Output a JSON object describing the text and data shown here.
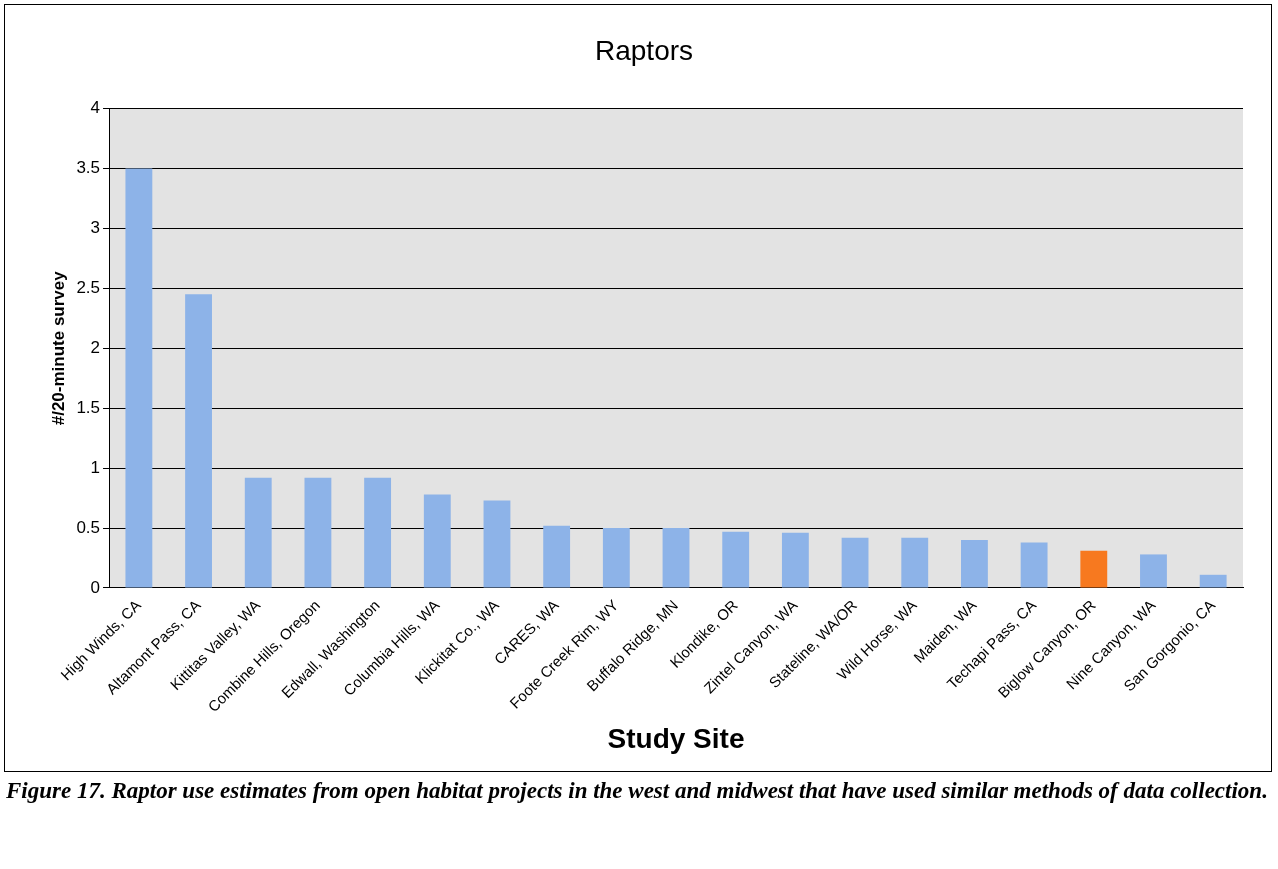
{
  "chart_data": {
    "type": "bar",
    "title": "Raptors",
    "xlabel": "Study Site",
    "ylabel": "#/20-minute survey",
    "categories": [
      "High Winds, CA",
      "Altamont Pass, CA",
      "Kittitas Valley, WA",
      "Combine Hills, Oregon",
      "Edwall, Washington",
      "Columbia Hills, WA",
      "Klickitat Co., WA",
      "CARES, WA",
      "Foote Creek Rim, WY",
      "Buffalo Ridge, MN",
      "Klondike, OR",
      "Zintel Canyon, WA",
      "Stateline, WA/OR",
      "Wild Horse, WA",
      "Maiden, WA",
      "Techapi Pass, CA",
      "Biglow Canyon, OR",
      "Nine Canyon, WA",
      "San Gorgonio, CA"
    ],
    "values": [
      3.5,
      2.45,
      0.92,
      0.92,
      0.92,
      0.78,
      0.73,
      0.52,
      0.5,
      0.5,
      0.47,
      0.46,
      0.42,
      0.42,
      0.4,
      0.38,
      0.31,
      0.28,
      0.11
    ],
    "colors": [
      "#8db3e8",
      "#8db3e8",
      "#8db3e8",
      "#8db3e8",
      "#8db3e8",
      "#8db3e8",
      "#8db3e8",
      "#8db3e8",
      "#8db3e8",
      "#8db3e8",
      "#8db3e8",
      "#8db3e8",
      "#8db3e8",
      "#8db3e8",
      "#8db3e8",
      "#8db3e8",
      "#f7791f",
      "#8db3e8",
      "#8db3e8"
    ],
    "ylim": [
      0,
      4
    ],
    "yticks": [
      0,
      0.5,
      1,
      1.5,
      2,
      2.5,
      3,
      3.5,
      4
    ],
    "grid": "y",
    "legend": false,
    "annotations": [
      "Figure 17.  Raptor use estimates from open habitat projects in the west and midwest that have used similar methods of data collection."
    ]
  }
}
